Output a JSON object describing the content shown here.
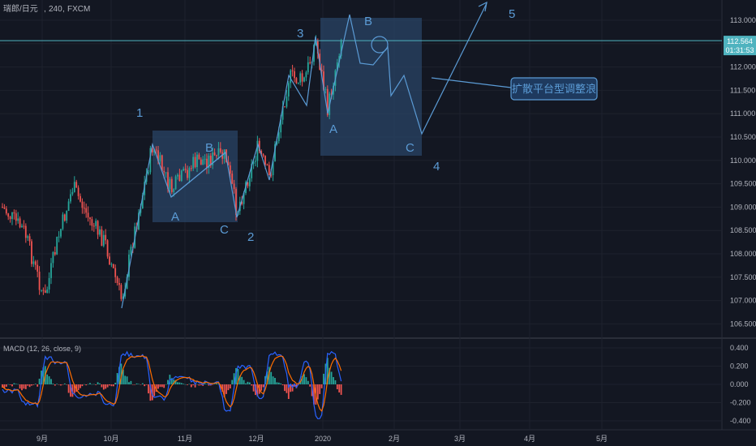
{
  "header": {
    "symbol": "瑞郎/日元",
    "interval": "240",
    "exchange": "FXCM"
  },
  "price_axis": {
    "ticks": [
      "113.000",
      "112.500",
      "112.000",
      "111.500",
      "111.000",
      "110.500",
      "110.000",
      "109.500",
      "109.000",
      "108.500",
      "108.000",
      "107.500",
      "107.000",
      "106.500"
    ],
    "tick_values": [
      113.0,
      112.5,
      112.0,
      111.5,
      111.0,
      110.5,
      110.0,
      109.5,
      109.0,
      108.5,
      108.0,
      107.5,
      107.0,
      106.5
    ],
    "current_price": "112.564",
    "current_value": 112.564,
    "countdown": "01:31:53"
  },
  "macd": {
    "label": "MACD (12, 26, close, 9)",
    "ticks": [
      "0.400",
      "0.200",
      "0.000",
      "-0.200",
      "-0.400"
    ],
    "tick_values": [
      0.4,
      0.2,
      0.0,
      -0.2,
      -0.4
    ]
  },
  "time_axis": {
    "labels": [
      "9月",
      "10月",
      "11月",
      "12月",
      "2020",
      "2月",
      "3月",
      "4月",
      "5月"
    ]
  },
  "annotations": {
    "wave_labels": [
      "1",
      "2",
      "3",
      "4",
      "5"
    ],
    "sub_labels": [
      "A",
      "B",
      "C",
      "A",
      "B",
      "C"
    ],
    "callout": "扩散平台型调整浪"
  },
  "colors": {
    "background": "#131722",
    "up_candle": "#26a69a",
    "down_candle": "#ef5350",
    "drawing": "#5b9bd5",
    "box_fill": "#2a4466",
    "callout_fill": "#1e3a5f",
    "price_line": "#4fb3bf",
    "macd_line": "#2962ff",
    "signal_line": "#ff6d00"
  }
}
